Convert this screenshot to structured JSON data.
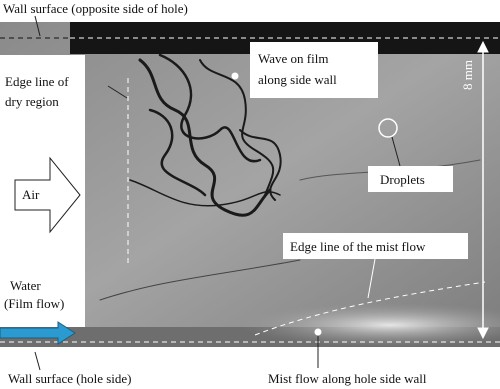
{
  "annotations": {
    "wall_top": "Wall surface (opposite side of hole)",
    "dry_edge": [
      "Edge line of",
      "dry region"
    ],
    "wave": [
      "Wave on film",
      "along side wall"
    ],
    "scale": "8 mm",
    "droplets": "Droplets",
    "air": "Air",
    "mist_edge": "Edge line of the mist flow",
    "water": [
      "Water",
      "(Film flow)"
    ],
    "wall_bottom": "Wall surface (hole side)",
    "mist_flow": "Mist flow along hole side wall"
  }
}
